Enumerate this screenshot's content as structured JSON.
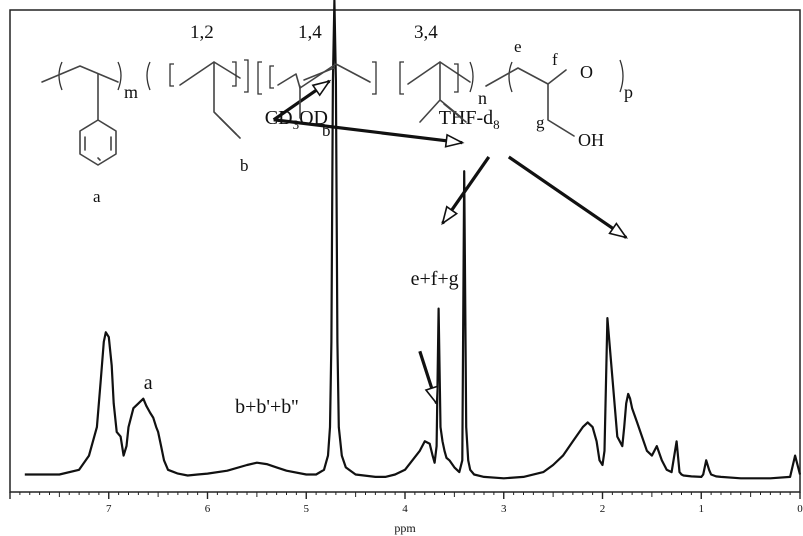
{
  "chart_data": {
    "type": "line",
    "title": "",
    "xlabel": "ppm",
    "ylabel": "",
    "xlim": [
      8,
      0
    ],
    "x_ticks": [
      "7",
      "6",
      "5",
      "4",
      "3",
      "2",
      "1",
      "0"
    ],
    "grid": false,
    "series": [
      {
        "name": "",
        "x": [
          7.85,
          7.5,
          7.3,
          7.2,
          7.12,
          7.08,
          7.05,
          7.03,
          7.0,
          6.97,
          6.95,
          6.92,
          6.88,
          6.85,
          6.82,
          6.8,
          6.75,
          6.7,
          6.65,
          6.62,
          6.58,
          6.55,
          6.52,
          6.5,
          6.47,
          6.44,
          6.4,
          6.35,
          6.3,
          6.2,
          6.1,
          6.0,
          5.8,
          5.6,
          5.5,
          5.4,
          5.3,
          5.2,
          5.0,
          4.9,
          4.82,
          4.78,
          4.76,
          4.745,
          4.73,
          4.715,
          4.7,
          4.685,
          4.67,
          4.64,
          4.6,
          4.5,
          4.3,
          4.2,
          4.1,
          4.0,
          3.85,
          3.8,
          3.75,
          3.72,
          3.7,
          3.68,
          3.66,
          3.64,
          3.62,
          3.6,
          3.58,
          3.55,
          3.5,
          3.45,
          3.42,
          3.4,
          3.38,
          3.36,
          3.34,
          3.3,
          3.2,
          3.0,
          2.8,
          2.6,
          2.5,
          2.4,
          2.3,
          2.2,
          2.15,
          2.1,
          2.06,
          2.03,
          2.0,
          1.98,
          1.95,
          1.85,
          1.8,
          1.78,
          1.76,
          1.74,
          1.72,
          1.7,
          1.65,
          1.6,
          1.55,
          1.5,
          1.45,
          1.4,
          1.35,
          1.3,
          1.25,
          1.22,
          1.2,
          1.18,
          1.1,
          1.0,
          0.98,
          0.95,
          0.92,
          0.9,
          0.85,
          0.8,
          0.6,
          0.3,
          0.1,
          0.05,
          0.0
        ],
        "y": [
          0.02,
          0.02,
          0.03,
          0.06,
          0.12,
          0.22,
          0.3,
          0.32,
          0.31,
          0.25,
          0.17,
          0.11,
          0.1,
          0.06,
          0.08,
          0.12,
          0.16,
          0.17,
          0.18,
          0.165,
          0.15,
          0.14,
          0.12,
          0.11,
          0.08,
          0.05,
          0.03,
          0.026,
          0.022,
          0.018,
          0.02,
          0.022,
          0.028,
          0.04,
          0.045,
          0.042,
          0.035,
          0.028,
          0.02,
          0.02,
          0.03,
          0.06,
          0.12,
          0.3,
          0.85,
          1.02,
          0.85,
          0.3,
          0.12,
          0.06,
          0.035,
          0.02,
          0.015,
          0.015,
          0.02,
          0.03,
          0.07,
          0.09,
          0.085,
          0.06,
          0.045,
          0.08,
          0.37,
          0.12,
          0.09,
          0.07,
          0.055,
          0.05,
          0.035,
          0.025,
          0.05,
          0.66,
          0.12,
          0.05,
          0.03,
          0.02,
          0.015,
          0.012,
          0.015,
          0.025,
          0.04,
          0.06,
          0.09,
          0.12,
          0.13,
          0.12,
          0.09,
          0.05,
          0.04,
          0.07,
          0.35,
          0.1,
          0.08,
          0.12,
          0.17,
          0.19,
          0.18,
          0.16,
          0.13,
          0.1,
          0.07,
          0.06,
          0.08,
          0.05,
          0.03,
          0.025,
          0.09,
          0.025,
          0.02,
          0.018,
          0.016,
          0.015,
          0.02,
          0.05,
          0.03,
          0.02,
          0.016,
          0.015,
          0.012,
          0.012,
          0.015,
          0.06,
          0.02
        ]
      }
    ],
    "peak_labels": [
      {
        "text": "a",
        "x": 6.6,
        "y": 0.2
      },
      {
        "text": "b+b'+b''",
        "x": 5.4,
        "y": 0.15
      },
      {
        "text": "e+f+g",
        "x": 3.7,
        "y": 0.42
      },
      {
        "text": "b\"",
        "x": 3.55,
        "y": 1.05
      },
      {
        "text": "CD",
        "sub": "3",
        "rest": "OD",
        "x": 5.1,
        "y": 0.76
      },
      {
        "text": "THF-d",
        "sub": "8",
        "rest": "",
        "x": 3.35,
        "y": 0.76
      }
    ],
    "annotations": {
      "cd3od_arrows": [
        {
          "x": 4.745,
          "y": 0.85
        },
        {
          "x": 3.4,
          "y": 0.72
        }
      ],
      "thf_arrows": [
        {
          "x": 3.64,
          "y": 0.55
        },
        {
          "x": 1.74,
          "y": 0.52
        }
      ],
      "efg_arrow": {
        "x": 3.68,
        "y": 0.17
      }
    }
  },
  "structure": {
    "repeat_labels": [
      "1,2",
      "1,4",
      "3,4"
    ],
    "subscripts": [
      "m",
      "n",
      "p"
    ],
    "atom_labels": [
      "a",
      "b",
      "b'",
      "e",
      "f",
      "g",
      "O",
      "OH"
    ]
  }
}
